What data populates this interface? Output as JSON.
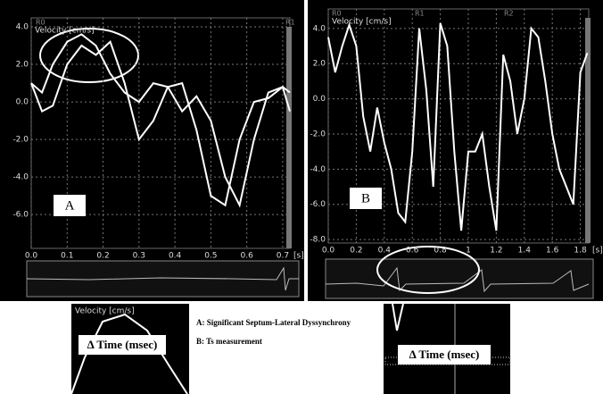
{
  "chart_data": [
    {
      "type": "line",
      "ylabel": "Velocity [cm/s]",
      "xlabel": "[s]",
      "annotation": "A",
      "region_labels": [
        "R0",
        "R1"
      ],
      "x": [
        0,
        0.03,
        0.06,
        0.1,
        0.14,
        0.18,
        0.22,
        0.26,
        0.3,
        0.34,
        0.38,
        0.42,
        0.46,
        0.5,
        0.54,
        0.58,
        0.62,
        0.66,
        0.7,
        0.72
      ],
      "series": [
        {
          "color": "#ffffff",
          "values": [
            1.0,
            0.5,
            2.0,
            3.2,
            3.6,
            3.0,
            1.5,
            0.5,
            0.0,
            1.0,
            0.8,
            -0.5,
            0.3,
            -1.0,
            -4.0,
            -5.5,
            -2.0,
            0.5,
            0.8,
            0.5
          ]
        },
        {
          "color": "#ffffff",
          "values": [
            1.0,
            -0.5,
            -0.2,
            2.0,
            3.0,
            2.5,
            3.2,
            1.0,
            -2.0,
            -1.0,
            0.8,
            1.0,
            -1.5,
            -5.0,
            -5.5,
            -2.0,
            0.0,
            0.2,
            0.8,
            -0.5
          ]
        }
      ],
      "xlim": [
        0,
        0.72
      ],
      "xticks": [
        {
          "value": 0,
          "label": "0.0"
        },
        0.1,
        0.2,
        0.3,
        0.4,
        0.5,
        0.6,
        0.7
      ],
      "ylim": [
        -7.8,
        4.0
      ],
      "yticks": [
        {
          "value": 4,
          "label": "4.0"
        },
        {
          "value": 2,
          "label": "2.0"
        },
        {
          "value": 0,
          "label": "0.0"
        },
        {
          "value": -2,
          "label": "-2.0"
        },
        {
          "value": -4,
          "label": "-4.0"
        },
        {
          "value": -6,
          "label": "-6.0"
        }
      ],
      "grid": true
    },
    {
      "type": "line",
      "ylabel": "Velocity [cm/s]",
      "xlabel": "[s]",
      "annotation": "B",
      "region_labels": [
        "R0",
        "R1",
        "R2"
      ],
      "x": [
        0,
        0.05,
        0.1,
        0.15,
        0.2,
        0.25,
        0.3,
        0.35,
        0.4,
        0.45,
        0.5,
        0.55,
        0.6,
        0.65,
        0.7,
        0.75,
        0.8,
        0.85,
        0.9,
        0.95,
        1.0,
        1.05,
        1.1,
        1.15,
        1.2,
        1.25,
        1.3,
        1.35,
        1.4,
        1.45,
        1.5,
        1.55,
        1.6,
        1.65,
        1.7,
        1.75,
        1.8,
        1.85
      ],
      "series": [
        {
          "color": "#ffffff",
          "values": [
            3.5,
            1.5,
            3.0,
            4.2,
            3.0,
            -1.0,
            -3.0,
            -0.5,
            -2.5,
            -4.0,
            -6.5,
            -7.0,
            -3.0,
            4.0,
            0.5,
            -5.0,
            4.3,
            3.0,
            -3.0,
            -7.5,
            -3.0,
            -3.0,
            -2.0,
            -5.0,
            -7.5,
            2.5,
            1.0,
            -2.0,
            0.0,
            4.0,
            3.5,
            1.0,
            -2.0,
            -4.0,
            -5.0,
            -6.0,
            1.5,
            2.6
          ]
        }
      ],
      "xlim": [
        0,
        1.86
      ],
      "xticks": [
        {
          "value": 0,
          "label": "0.0"
        },
        0.2,
        0.4,
        0.6,
        0.8,
        1,
        1.2,
        1.4,
        1.6,
        1.8
      ],
      "ylim": [
        -8.2,
        4.6
      ],
      "yticks": [
        {
          "value": 4,
          "label": "4.0"
        },
        {
          "value": 2,
          "label": "2.0"
        },
        {
          "value": 0,
          "label": "0.0"
        },
        {
          "value": -2,
          "label": "-2.0"
        },
        {
          "value": -4,
          "label": "-4.0"
        },
        {
          "value": -6,
          "label": "-6.0"
        },
        {
          "value": -8,
          "label": "-8.0"
        }
      ],
      "grid": true
    }
  ],
  "notes": [
    "A: Significant Septum-Lateral Dyssynchrony",
    "B: Ts measurement"
  ],
  "insets": [
    {
      "label": "Velocity [cm/s]",
      "caption": "Δ Time (msec)"
    },
    {
      "caption": "Δ Time (msec)"
    }
  ]
}
